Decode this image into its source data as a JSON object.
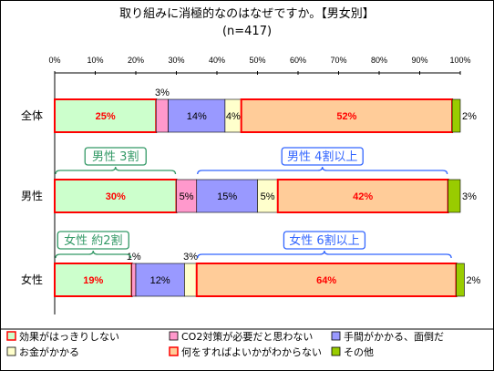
{
  "chart_data": {
    "type": "stacked-bar-horizontal",
    "title": "取り組みに消極的なのはなぜですか。【男女別】",
    "subtitle": "(n=417)",
    "x_ticks": [
      "0%",
      "10%",
      "20%",
      "30%",
      "40%",
      "50%",
      "60%",
      "70%",
      "80%",
      "90%",
      "100%"
    ],
    "xlim": [
      0,
      100
    ],
    "categories": [
      "全体",
      "男性",
      "女性"
    ],
    "series": [
      {
        "name": "効果がはっきりしない",
        "color": "#ccffcc",
        "border": "#ff0000",
        "values": [
          25,
          30,
          19
        ],
        "labels": [
          "25%",
          "30%",
          "19%"
        ],
        "label_color": "#ff0000"
      },
      {
        "name": "CO2対策が必要だと思わない",
        "color": "#ff99cc",
        "values": [
          3,
          5,
          1
        ],
        "labels": [
          "3%",
          "5%",
          "1%"
        ],
        "label_color": "#000000"
      },
      {
        "name": "手間がかかる、面倒だ",
        "color": "#9999ff",
        "values": [
          14,
          15,
          12
        ],
        "labels": [
          "14%",
          "15%",
          "12%"
        ],
        "label_color": "#000000"
      },
      {
        "name": "お金がかかる",
        "color": "#ffffcc",
        "values": [
          4,
          5,
          3
        ],
        "labels": [
          "4%",
          "5%",
          "3%"
        ],
        "label_color": "#000000"
      },
      {
        "name": "何をすればよいかがわからない",
        "color": "#ffcc99",
        "border": "#ff0000",
        "values": [
          52,
          42,
          64
        ],
        "labels": [
          "52%",
          "42%",
          "64%"
        ],
        "label_color": "#ff0000"
      },
      {
        "name": "その他",
        "color": "#99cc00",
        "values": [
          2,
          3,
          2
        ],
        "labels": [
          "2%",
          "3%",
          "2%"
        ],
        "label_color": "#000000"
      }
    ],
    "annotations": [
      {
        "text": "男性 3割",
        "row": 1,
        "from": 0,
        "to": 30,
        "color": "#339966"
      },
      {
        "text": "男性 4割以上",
        "row": 1,
        "from": 35,
        "to": 97,
        "color": "#3366ff"
      },
      {
        "text": "女性 約2割",
        "row": 2,
        "from": 0,
        "to": 19,
        "color": "#339966"
      },
      {
        "text": "女性 6割以上",
        "row": 2,
        "from": 35,
        "to": 98,
        "color": "#3366ff"
      }
    ],
    "legend_position": "bottom"
  }
}
